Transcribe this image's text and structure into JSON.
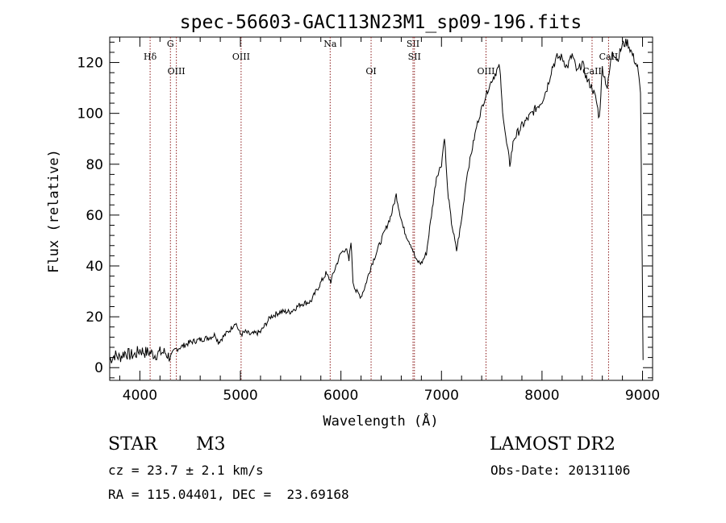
{
  "chart_data": {
    "type": "line",
    "title": "spec-56603-GAC113N23M1_sp09-196.fits",
    "xlabel": "Wavelength (Å)",
    "ylabel": "Flux (relative)",
    "xlim": [
      3700,
      9100
    ],
    "ylim": [
      -5,
      130
    ],
    "xticks": [
      4000,
      5000,
      6000,
      7000,
      8000,
      9000
    ],
    "yticks": [
      0,
      20,
      40,
      60,
      80,
      100,
      120
    ],
    "grid": false,
    "series": [
      {
        "values": [
          [
            3700,
            3
          ],
          [
            3750,
            5
          ],
          [
            3800,
            4
          ],
          [
            3850,
            6
          ],
          [
            3900,
            5
          ],
          [
            3950,
            5
          ],
          [
            4000,
            7
          ],
          [
            4050,
            6
          ],
          [
            4100,
            6
          ],
          [
            4150,
            5
          ],
          [
            4200,
            6
          ],
          [
            4250,
            6
          ],
          [
            4300,
            4
          ],
          [
            4350,
            7
          ],
          [
            4400,
            8
          ],
          [
            4500,
            10
          ],
          [
            4600,
            11
          ],
          [
            4700,
            12
          ],
          [
            4750,
            13
          ],
          [
            4780,
            10
          ],
          [
            4850,
            13
          ],
          [
            4900,
            15
          ],
          [
            4950,
            18
          ],
          [
            5000,
            13
          ],
          [
            5050,
            14
          ],
          [
            5100,
            13
          ],
          [
            5200,
            14
          ],
          [
            5250,
            17
          ],
          [
            5300,
            20
          ],
          [
            5400,
            22
          ],
          [
            5500,
            22
          ],
          [
            5600,
            25
          ],
          [
            5700,
            26
          ],
          [
            5780,
            32
          ],
          [
            5850,
            37
          ],
          [
            5900,
            34
          ],
          [
            5950,
            40
          ],
          [
            6000,
            45
          ],
          [
            6050,
            47
          ],
          [
            6080,
            42
          ],
          [
            6100,
            50
          ],
          [
            6120,
            34
          ],
          [
            6150,
            30
          ],
          [
            6200,
            28
          ],
          [
            6240,
            32
          ],
          [
            6300,
            40
          ],
          [
            6350,
            45
          ],
          [
            6400,
            50
          ],
          [
            6450,
            55
          ],
          [
            6500,
            60
          ],
          [
            6550,
            68
          ],
          [
            6580,
            62
          ],
          [
            6620,
            55
          ],
          [
            6650,
            52
          ],
          [
            6700,
            48
          ],
          [
            6750,
            42
          ],
          [
            6800,
            41
          ],
          [
            6850,
            45
          ],
          [
            6900,
            60
          ],
          [
            6950,
            75
          ],
          [
            7000,
            80
          ],
          [
            7030,
            91
          ],
          [
            7060,
            70
          ],
          [
            7100,
            57
          ],
          [
            7150,
            46
          ],
          [
            7200,
            58
          ],
          [
            7250,
            75
          ],
          [
            7300,
            85
          ],
          [
            7350,
            95
          ],
          [
            7400,
            102
          ],
          [
            7450,
            108
          ],
          [
            7500,
            113
          ],
          [
            7550,
            117
          ],
          [
            7580,
            118
          ],
          [
            7600,
            105
          ],
          [
            7640,
            90
          ],
          [
            7680,
            80
          ],
          [
            7720,
            90
          ],
          [
            7800,
            95
          ],
          [
            7900,
            100
          ],
          [
            8000,
            105
          ],
          [
            8050,
            110
          ],
          [
            8100,
            118
          ],
          [
            8150,
            122
          ],
          [
            8200,
            122
          ],
          [
            8250,
            118
          ],
          [
            8300,
            123
          ],
          [
            8350,
            116
          ],
          [
            8400,
            120
          ],
          [
            8450,
            113
          ],
          [
            8500,
            110
          ],
          [
            8540,
            105
          ],
          [
            8570,
            98
          ],
          [
            8600,
            118
          ],
          [
            8650,
            110
          ],
          [
            8700,
            125
          ],
          [
            8750,
            121
          ],
          [
            8800,
            127
          ],
          [
            8850,
            128
          ],
          [
            8900,
            123
          ],
          [
            8950,
            118
          ],
          [
            8980,
            108
          ],
          [
            9000,
            30
          ],
          [
            9005,
            3
          ]
        ]
      }
    ],
    "lines": [
      {
        "label": "Hδ",
        "x": 4102
      },
      {
        "label": "G",
        "x": 4304
      },
      {
        "label": "OIII",
        "x": 4363
      },
      {
        "label": "OIII",
        "x": 5007
      },
      {
        "label": "Na",
        "x": 5893
      },
      {
        "label": "OI",
        "x": 6300
      },
      {
        "label": "SII",
        "x": 6717
      },
      {
        "label": "SII",
        "x": 6731
      },
      {
        "label": "OIII",
        "x": 7443
      },
      {
        "label": "CaII",
        "x": 8498
      },
      {
        "label": "CaII",
        "x": 8662
      }
    ],
    "line_color": "#000000",
    "marker_color": "#8b1a1a"
  },
  "info": {
    "class": "STAR",
    "subclass": "M3",
    "survey": "LAMOST DR2",
    "cz": "cz = 23.7 ± 2.1 km/s",
    "obs_date": "Obs-Date: 20131106",
    "radec": "RA = 115.04401, DEC =  23.69168"
  }
}
